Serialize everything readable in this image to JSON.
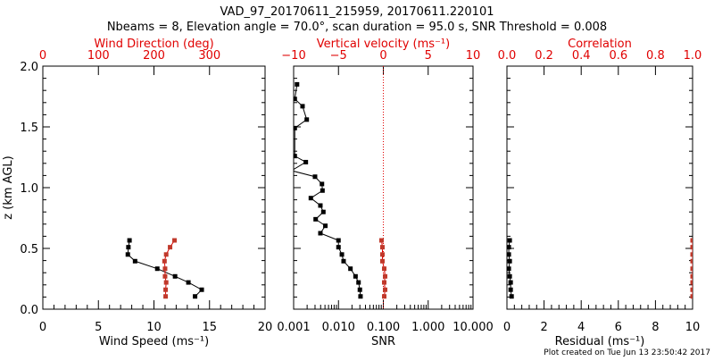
{
  "colors": {
    "black": "#000000",
    "red": "#e00000",
    "red_marker": "#c0392b"
  },
  "chart_data": {
    "title": "VAD_97_20170611_215959, 20170611.220101",
    "subtitle": "Nbeams = 8, Elevation angle = 70.0°, scan duration = 95.0 s, SNR Threshold = 0.008",
    "footer": "Plot created on Tue Jun 13 23:50:42 2017",
    "ylabel": "z (km AGL)",
    "ylim": [
      0,
      2.0
    ],
    "yticks": [
      "0.0",
      "0.5",
      "1.0",
      "1.5",
      "2.0"
    ],
    "panels": [
      {
        "type": "line",
        "bottom_axis": {
          "label": "Wind Speed (ms⁻¹)",
          "lim": [
            0,
            20
          ],
          "ticks": [
            "0",
            "5",
            "10",
            "15",
            "20"
          ]
        },
        "top_axis": {
          "label": "Wind Direction (deg)",
          "lim": [
            0,
            400
          ],
          "ticks": [
            "0",
            "100",
            "200",
            "300"
          ]
        },
        "series": [
          {
            "name": "Wind Speed",
            "axis": "bottom",
            "color": "black",
            "z": [
              0.105,
              0.16,
              0.22,
              0.27,
              0.333,
              0.395,
              0.45,
              0.51,
              0.566
            ],
            "values": [
              13.7,
              14.3,
              13.1,
              11.9,
              10.3,
              8.3,
              7.65,
              7.7,
              7.8
            ]
          },
          {
            "name": "Wind Direction",
            "axis": "top",
            "color": "red",
            "z": [
              0.105,
              0.16,
              0.22,
              0.27,
              0.333,
              0.395,
              0.45,
              0.51,
              0.566
            ],
            "values": [
              221,
              221,
              222,
              220,
              220,
              219,
              222,
              229,
              237
            ]
          }
        ]
      },
      {
        "type": "line",
        "bottom_axis": {
          "label": "SNR",
          "scale": "log",
          "lim": [
            0.001,
            10
          ],
          "ticks": [
            "0.001",
            "0.010",
            "0.100",
            "1.000",
            "10.000"
          ]
        },
        "top_axis": {
          "label": "Vertical velocity (ms⁻¹)",
          "lim": [
            -10,
            10
          ],
          "ticks": [
            "−10",
            "−5",
            "0",
            "5",
            "10"
          ]
        },
        "series": [
          {
            "name": "SNR",
            "axis": "bottom",
            "color": "black",
            "z": [
              0.105,
              0.16,
              0.22,
              0.27,
              0.333,
              0.395,
              0.45,
              0.51,
              0.566,
              0.625,
              0.686,
              0.74,
              0.8,
              0.853,
              0.914,
              0.976,
              1.03,
              1.09,
              1.14,
              1.21,
              1.26,
              1.49,
              1.56,
              1.67,
              1.73,
              1.85
            ],
            "values": [
              0.031,
              0.03,
              0.028,
              0.024,
              0.0185,
              0.013,
              0.0119,
              0.01,
              0.01,
              0.00395,
              0.0051,
              0.0031,
              0.0046,
              0.00395,
              0.00242,
              0.0044,
              0.00428,
              0.003,
              0.0009,
              0.00187,
              0.00106,
              0.00106,
              0.00196,
              0.00158,
              0.00106,
              0.00119
            ]
          },
          {
            "name": "Vertical velocity",
            "axis": "top",
            "color": "red",
            "z": [
              0.105,
              0.16,
              0.22,
              0.27,
              0.333,
              0.395,
              0.45,
              0.51,
              0.566
            ],
            "values": [
              0.1,
              0.2,
              0.1,
              0.2,
              0.1,
              -0.1,
              -0.1,
              -0.1,
              -0.2
            ]
          }
        ],
        "reference_line": {
          "axis": "top",
          "value": 0,
          "style": "dotted"
        }
      },
      {
        "type": "line",
        "bottom_axis": {
          "label": "Residual (ms⁻¹)",
          "lim": [
            0,
            10
          ],
          "ticks": [
            "0",
            "2",
            "4",
            "6",
            "8",
            "10"
          ]
        },
        "top_axis": {
          "label": "Correlation",
          "lim": [
            0,
            1
          ],
          "ticks": [
            "0.0",
            "0.2",
            "0.4",
            "0.6",
            "0.8",
            "1.0"
          ]
        },
        "series": [
          {
            "name": "Residual",
            "axis": "bottom",
            "color": "black",
            "z": [
              0.105,
              0.16,
              0.22,
              0.27,
              0.333,
              0.395,
              0.45,
              0.51,
              0.566
            ],
            "values": [
              0.25,
              0.2,
              0.2,
              0.15,
              0.1,
              0.15,
              0.1,
              0.1,
              0.15
            ]
          },
          {
            "name": "Correlation",
            "axis": "top",
            "color": "red",
            "z": [
              0.105,
              0.16,
              0.22,
              0.27,
              0.333,
              0.395,
              0.45,
              0.51,
              0.566
            ],
            "values": [
              1.0,
              1.0,
              1.0,
              1.0,
              1.0,
              1.0,
              1.0,
              1.0,
              1.0
            ]
          }
        ]
      }
    ]
  }
}
